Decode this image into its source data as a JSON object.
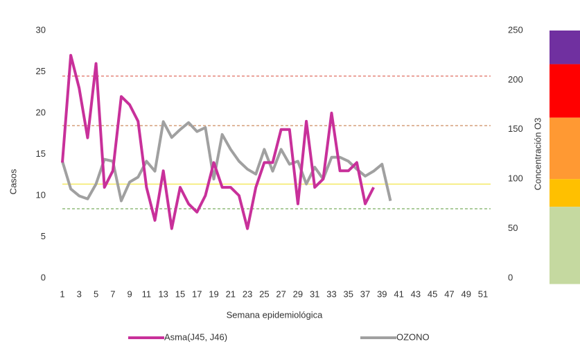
{
  "chart_data": {
    "type": "line",
    "categories": [
      "1",
      null,
      "3",
      null,
      "5",
      null,
      "7",
      null,
      "9",
      null,
      "11",
      null,
      "13",
      null,
      "15",
      null,
      "17",
      null,
      "19",
      null,
      "21",
      null,
      "23",
      null,
      "25",
      null,
      "27",
      null,
      "29",
      null,
      "31",
      null,
      "33",
      null,
      "35",
      null,
      "37",
      null,
      "39",
      null,
      "41",
      null,
      "43",
      null,
      "45",
      null,
      "47",
      null,
      "49",
      null,
      "51"
    ],
    "series": [
      {
        "name": "Asma(J45, J46)",
        "color": "#c8309a",
        "values": [
          14,
          27,
          23,
          17,
          26,
          11,
          13,
          22,
          21,
          19,
          11,
          7,
          13,
          6,
          11,
          9,
          8,
          10,
          14,
          11,
          11,
          10,
          6,
          11,
          14,
          14,
          18,
          18,
          9,
          19,
          11,
          12,
          20,
          13,
          13,
          14,
          9,
          11,
          null,
          null,
          null,
          null,
          null,
          null,
          null,
          null,
          null,
          null,
          null,
          null,
          null
        ]
      },
      {
        "name": "OZONO",
        "color": "#a0a0a0",
        "axis": "y2",
        "values": [
          118,
          90,
          83,
          80,
          95,
          120,
          118,
          78,
          97,
          102,
          118,
          108,
          158,
          142,
          150,
          157,
          148,
          152,
          100,
          145,
          130,
          118,
          110,
          105,
          130,
          108,
          130,
          115,
          118,
          95,
          112,
          100,
          122,
          122,
          118,
          110,
          103,
          108,
          115,
          78,
          null,
          null,
          null,
          null,
          null,
          null,
          null,
          null,
          null,
          null,
          null
        ]
      }
    ],
    "ylabel": "Casos",
    "y2label": "Concentración O3",
    "xlabel": "Semana epidemiológica",
    "ylim": [
      0,
      30
    ],
    "yticks": [
      0,
      5,
      10,
      15,
      20,
      25,
      30
    ],
    "y2lim": [
      0,
      250
    ],
    "y2ticks": [
      0,
      50,
      100,
      150,
      200,
      250
    ],
    "reference_lines": [
      {
        "value": 204,
        "color": "#d94a3a",
        "dashed": true
      },
      {
        "value": 154,
        "color": "#c0703a",
        "dashed": true
      },
      {
        "value": 95,
        "color": "#f0e020",
        "dashed": false
      },
      {
        "value": 70,
        "color": "#5a9a3a",
        "dashed": true
      }
    ],
    "bands": [
      {
        "from": 216,
        "to": 250,
        "color": "#7030a0"
      },
      {
        "from": 162,
        "to": 216,
        "color": "#ff0000"
      },
      {
        "from": 100,
        "to": 162,
        "color": "#ff9933"
      },
      {
        "from": 72,
        "to": 100,
        "color": "#ffc000"
      },
      {
        "from": -6,
        "to": 72,
        "color": "#c5d9a0"
      }
    ],
    "legend": "bottom"
  }
}
